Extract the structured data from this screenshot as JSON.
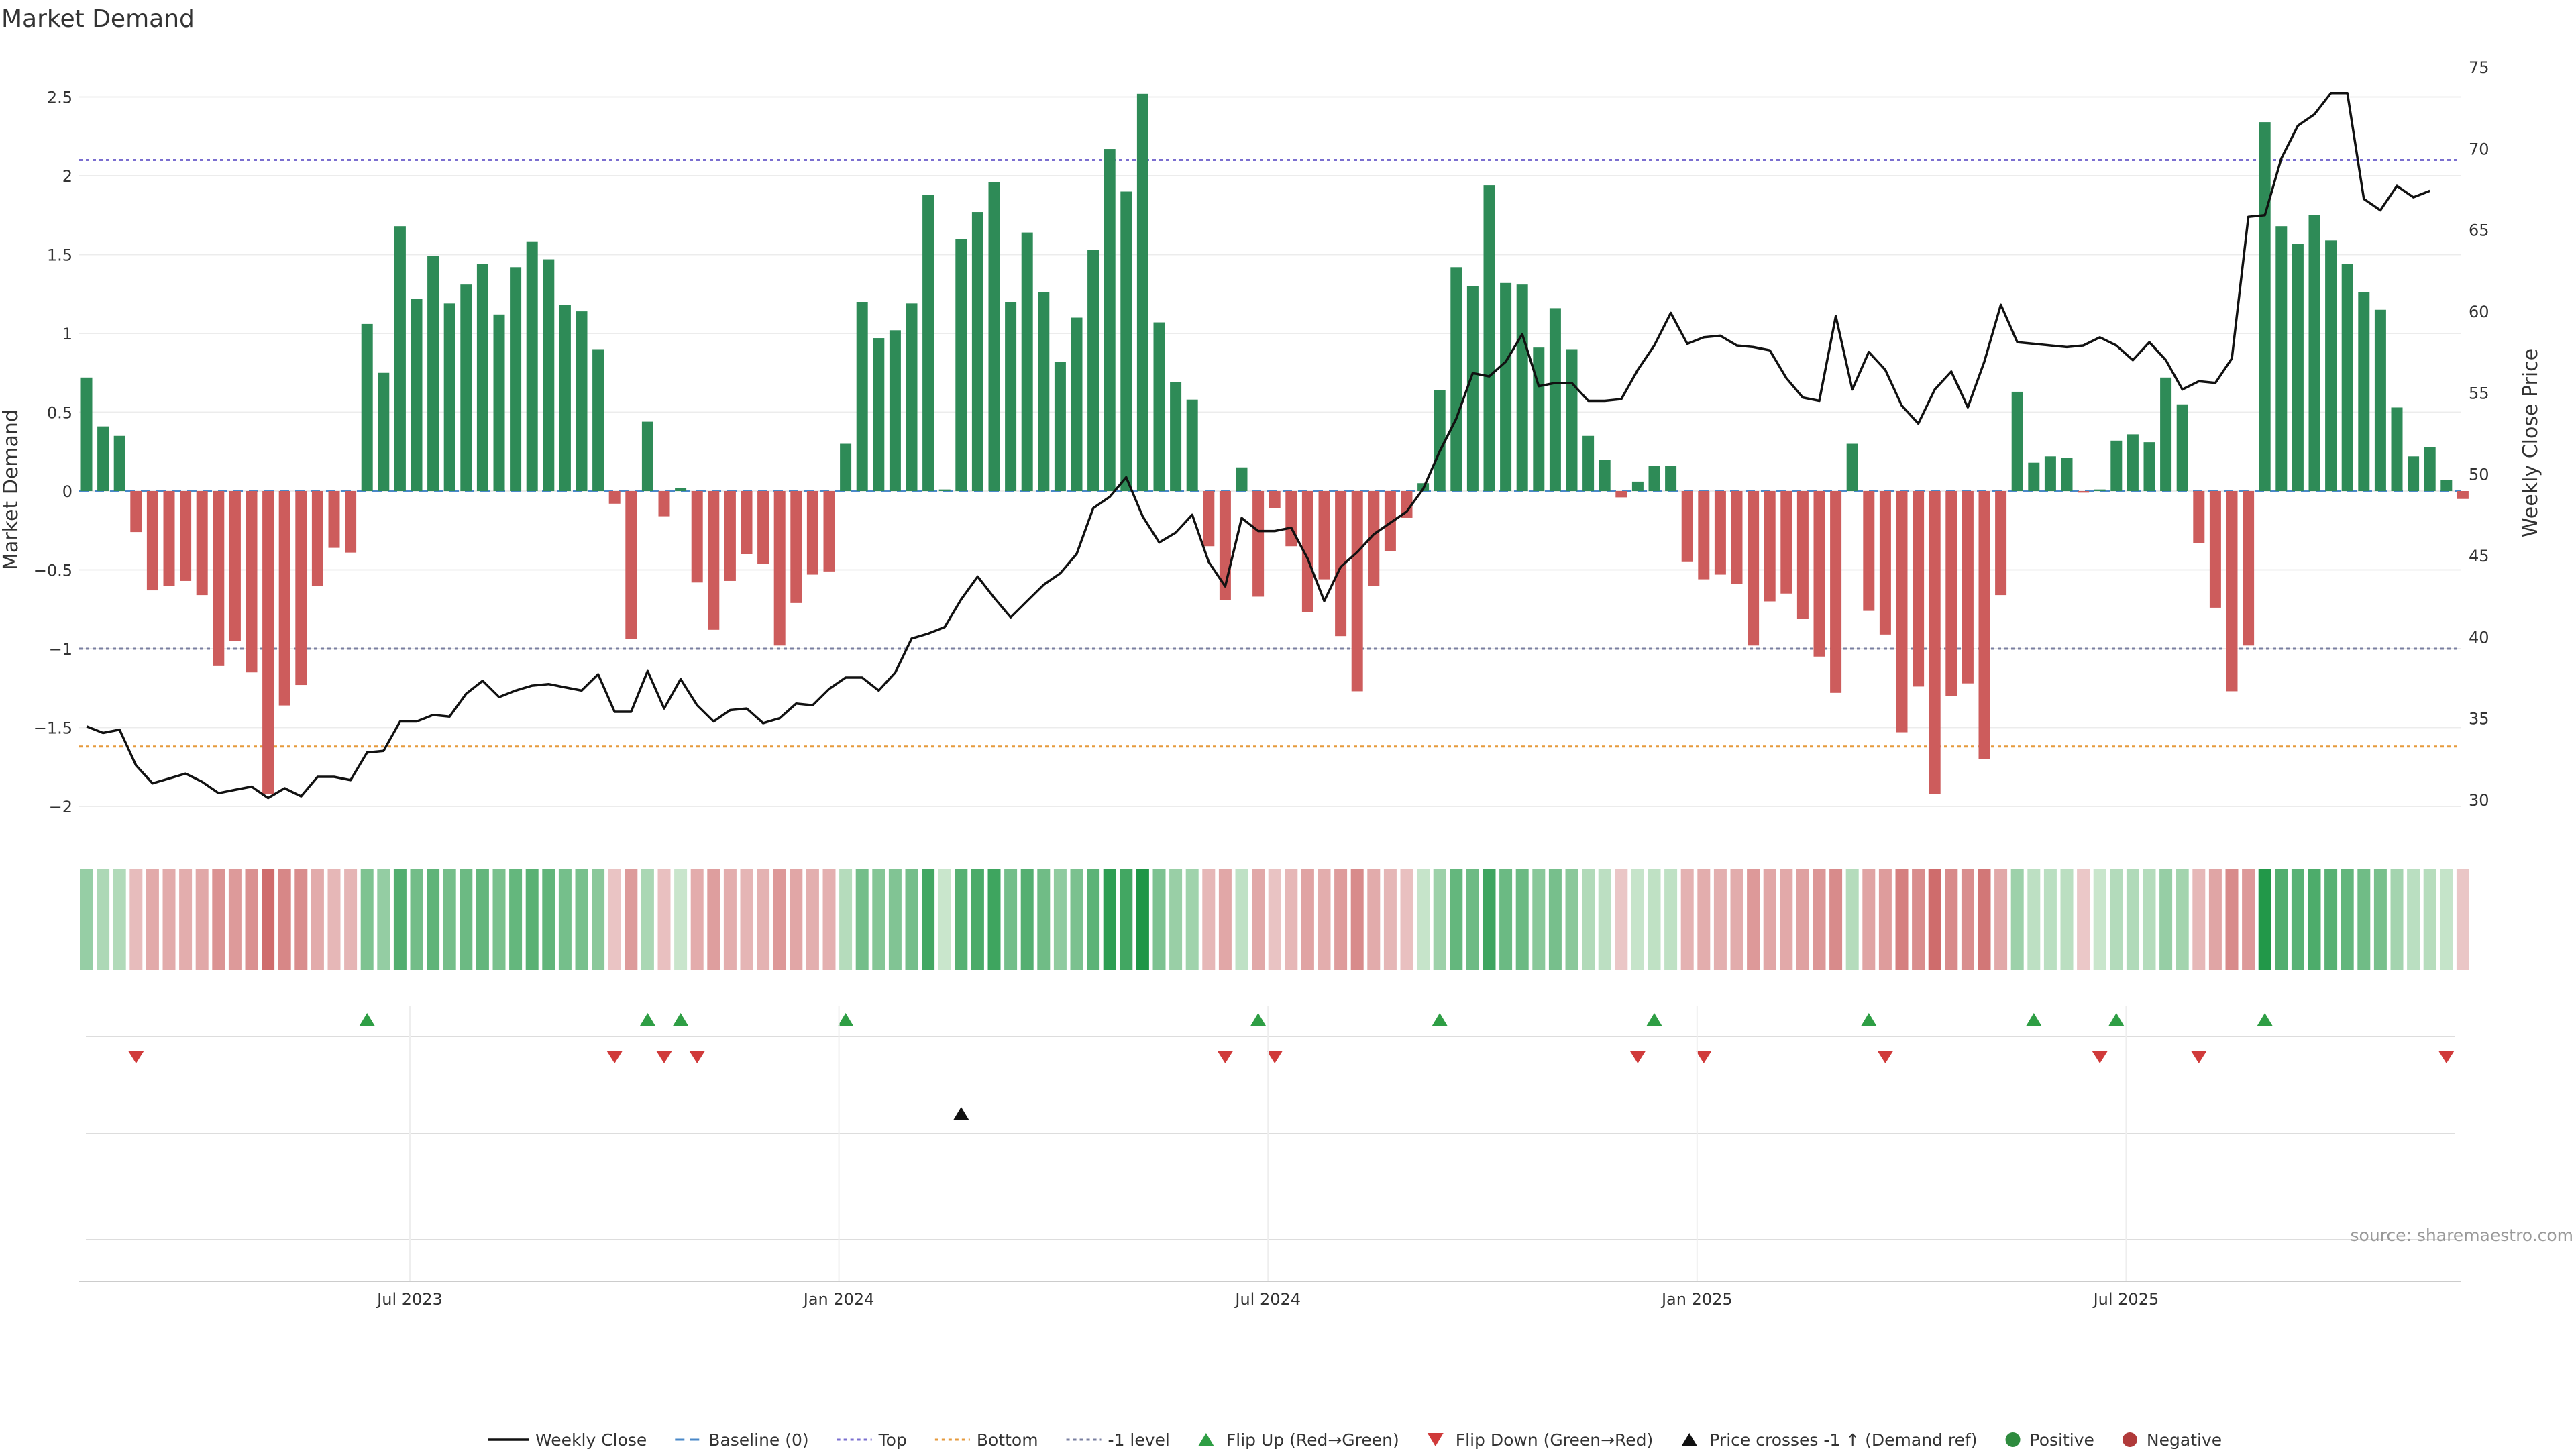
{
  "chart_data": {
    "type": "bar",
    "title": "Market Demand",
    "ylabel": "Market Demand",
    "y2label": "Weekly Close Price",
    "ylim": [
      -2.2,
      2.8
    ],
    "y2lim": [
      28,
      76
    ],
    "yticks": [
      "2.5",
      "2",
      "1.5",
      "1",
      "0.5",
      "0",
      "−0.5",
      "−1",
      "−1.5",
      "−2"
    ],
    "yticks_values": [
      2.5,
      2,
      1.5,
      1,
      0.5,
      0,
      -0.5,
      -1,
      -1.5,
      -2
    ],
    "y2ticks": [
      "75",
      "70",
      "65",
      "60",
      "55",
      "50",
      "45",
      "40",
      "35",
      "30"
    ],
    "y2ticks_values": [
      75,
      70,
      65,
      60,
      55,
      50,
      45,
      40,
      35,
      30
    ],
    "start_date": "2023-02-20",
    "xticks": [
      {
        "label": "Jul 2023",
        "week": 20
      },
      {
        "label": "Jan 2024",
        "week": 46
      },
      {
        "label": "Jul 2024",
        "week": 72
      },
      {
        "label": "Jan 2025",
        "week": 98
      },
      {
        "label": "Jul 2025",
        "week": 124
      }
    ],
    "reference_lines": [
      {
        "name": "Top",
        "value": 2.1,
        "color": "#7b6fd0"
      },
      {
        "name": "-1 level",
        "value": -1.0,
        "color": "#7a7fa0"
      },
      {
        "name": "Bottom",
        "value": -1.62,
        "color": "#e69a3c"
      }
    ],
    "series": [
      {
        "name": "Market Demand",
        "values": [
          0.72,
          0.41,
          0.35,
          -0.26,
          -0.63,
          -0.6,
          -0.57,
          -0.66,
          -1.11,
          -0.95,
          -1.15,
          -1.92,
          -1.36,
          -1.23,
          -0.6,
          -0.36,
          -0.39,
          1.06,
          0.75,
          1.68,
          1.22,
          1.49,
          1.19,
          1.31,
          1.44,
          1.12,
          1.42,
          1.58,
          1.47,
          1.18,
          1.14,
          0.9,
          -0.08,
          -0.94,
          0.44,
          -0.16,
          0.02,
          -0.58,
          -0.88,
          -0.57,
          -0.4,
          -0.46,
          -0.98,
          -0.71,
          -0.53,
          -0.51,
          0.3,
          1.2,
          0.97,
          1.02,
          1.19,
          1.88,
          0.01,
          1.6,
          1.77,
          1.96,
          1.2,
          1.64,
          1.26,
          0.82,
          1.1,
          1.53,
          2.17,
          1.9,
          2.52,
          1.07,
          0.69,
          0.58,
          -0.35,
          -0.69,
          0.15,
          -0.67,
          -0.11,
          -0.35,
          -0.77,
          -0.56,
          -0.92,
          -1.27,
          -0.6,
          -0.38,
          -0.17,
          0.05,
          0.64,
          1.42,
          1.3,
          1.94,
          1.32,
          1.31,
          0.91,
          1.16,
          0.9,
          0.35,
          0.2,
          -0.04,
          0.06,
          0.16,
          0.16,
          -0.45,
          -0.56,
          -0.53,
          -0.59,
          -0.98,
          -0.7,
          -0.65,
          -0.81,
          -1.05,
          -1.28,
          0.3,
          -0.76,
          -0.91,
          -1.53,
          -1.24,
          -1.92,
          -1.3,
          -1.22,
          -1.7,
          -0.66,
          0.63,
          0.18,
          0.22,
          0.21,
          -0.01,
          0.01,
          0.32,
          0.36,
          0.31,
          0.72,
          0.55,
          -0.33,
          -0.74,
          -1.27,
          -0.98,
          2.34,
          1.68,
          1.57,
          1.75,
          1.59,
          1.44,
          1.26,
          1.15,
          0.53,
          0.22,
          0.28,
          0.07,
          -0.05
        ]
      },
      {
        "name": "Weekly Close",
        "values": [
          34.5,
          34.1,
          34.3,
          32.1,
          31.0,
          31.3,
          31.6,
          31.1,
          30.4,
          30.6,
          30.8,
          30.1,
          30.7,
          30.2,
          31.4,
          31.4,
          31.2,
          32.9,
          33.0,
          34.8,
          34.8,
          35.2,
          35.1,
          36.5,
          37.3,
          36.3,
          36.7,
          37.0,
          37.1,
          36.9,
          36.7,
          37.7,
          35.4,
          35.4,
          37.9,
          35.6,
          37.4,
          35.8,
          34.8,
          35.5,
          35.6,
          34.7,
          35.0,
          35.9,
          35.8,
          36.8,
          37.5,
          37.5,
          36.7,
          37.8,
          39.9,
          40.2,
          40.6,
          42.3,
          43.7,
          42.4,
          41.2,
          42.2,
          43.2,
          43.9,
          45.1,
          47.9,
          48.6,
          49.8,
          47.4,
          45.8,
          46.4,
          47.5,
          44.6,
          43.1,
          47.3,
          46.5,
          46.5,
          46.7,
          44.8,
          42.2,
          44.3,
          45.2,
          46.3,
          47.0,
          47.7,
          49.1,
          51.4,
          53.4,
          56.2,
          56.0,
          56.9,
          58.6,
          55.4,
          55.6,
          55.6,
          54.5,
          54.5,
          54.6,
          56.4,
          57.9,
          59.9,
          58.0,
          58.4,
          58.5,
          57.9,
          57.8,
          57.6,
          55.9,
          54.7,
          54.5,
          59.7,
          55.2,
          57.5,
          56.4,
          54.2,
          53.1,
          55.2,
          56.3,
          54.1,
          56.9,
          60.4,
          58.1,
          58.0,
          57.9,
          57.8,
          57.9,
          58.4,
          57.9,
          57.0,
          58.1,
          57.0,
          55.2,
          55.7,
          55.6,
          57.1,
          65.8,
          65.9,
          69.4,
          71.4,
          72.1,
          73.4,
          73.4,
          66.9,
          66.2,
          67.7,
          67.0,
          67.4
        ]
      }
    ],
    "flip_up_weeks": [
      17,
      34,
      36,
      46,
      71,
      82,
      95,
      108,
      118,
      123,
      132
    ],
    "flip_down_weeks": [
      3,
      32,
      35,
      37,
      69,
      72,
      94,
      98,
      109,
      122,
      128,
      143
    ],
    "price_cross_weeks": [
      53
    ],
    "legend": [
      {
        "label": "Weekly Close",
        "symbol": "line",
        "color": "#111111"
      },
      {
        "label": "Baseline (0)",
        "symbol": "dash",
        "color": "#4a88c8"
      },
      {
        "label": "Top",
        "symbol": "dot",
        "color": "#7b6fd0"
      },
      {
        "label": "Bottom",
        "symbol": "dot",
        "color": "#e69a3c"
      },
      {
        "label": "-1 level",
        "symbol": "dot",
        "color": "#7a7fa0"
      },
      {
        "label": "Flip Up (Red→Green)",
        "symbol": "tri-up",
        "color": "#2e9e44"
      },
      {
        "label": "Flip Down (Green→Red)",
        "symbol": "tri-down",
        "color": "#d03a3a"
      },
      {
        "label": "Price crosses -1 ↑ (Demand ref)",
        "symbol": "tri-up",
        "color": "#111111"
      },
      {
        "label": "Positive",
        "symbol": "circle",
        "color": "#2e8b3e"
      },
      {
        "label": "Negative",
        "symbol": "circle",
        "color": "#b03a3a"
      }
    ],
    "colors": {
      "positive": "#2e8b57",
      "negative": "#cd5c5c",
      "price": "#111111",
      "baseline": "#4a88c8"
    }
  },
  "source": "source: sharemaestro.com"
}
